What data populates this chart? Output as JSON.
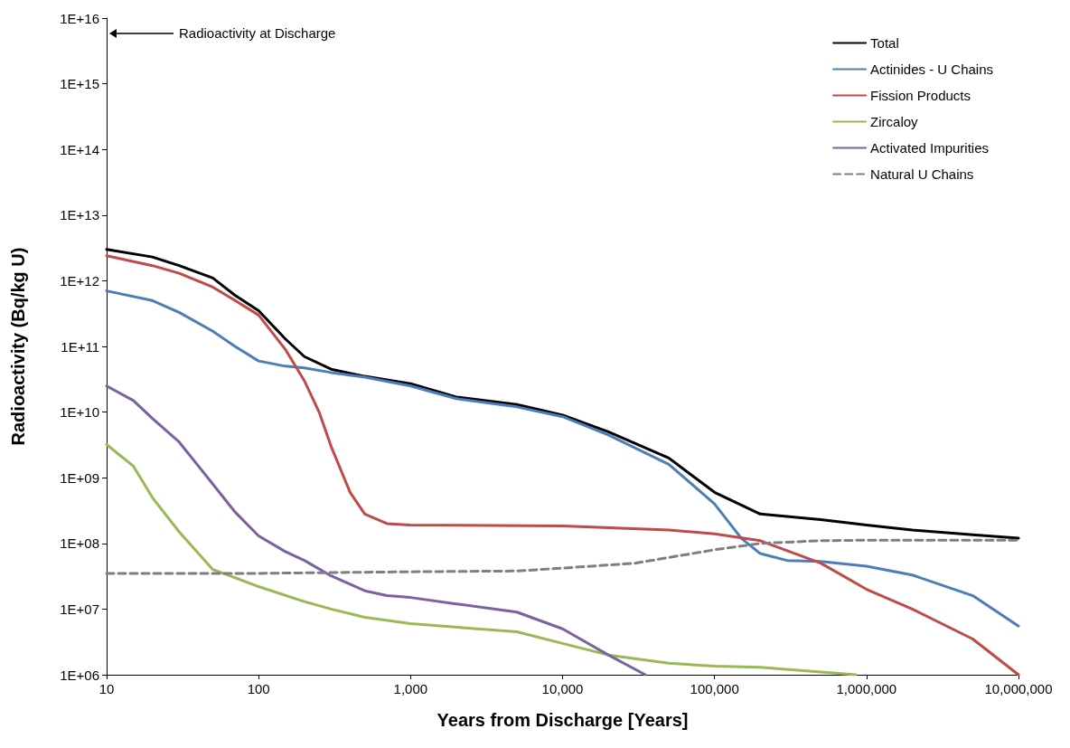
{
  "chart_data": {
    "type": "line",
    "xlabel": "Years from Discharge [Years]",
    "ylabel": "Radioactivity (Bq/kg U)",
    "log": "xy",
    "grid": false,
    "legend": "top right",
    "marker": "none",
    "xlim": [
      10,
      10000000
    ],
    "xticks": [
      10,
      100,
      {
        "value": 1000,
        "label": "1,000"
      },
      {
        "value": 10000,
        "label": "10,000"
      },
      {
        "value": 100000,
        "label": "100,000"
      },
      {
        "value": 1000000,
        "label": "1,000,000"
      },
      {
        "value": 10000000,
        "label": "10,000,000"
      }
    ],
    "ylim": [
      1000000,
      10000000000000000
    ],
    "yticks": [
      {
        "value": 1000000,
        "label": "1E+06"
      },
      {
        "value": 10000000,
        "label": "1E+07"
      },
      {
        "value": 100000000,
        "label": "1E+08"
      },
      {
        "value": 1000000000,
        "label": "1E+09"
      },
      {
        "value": 10000000000,
        "label": "1E+10"
      },
      {
        "value": 100000000000,
        "label": "1E+11"
      },
      {
        "value": 1000000000000,
        "label": "1E+12"
      },
      {
        "value": 10000000000000,
        "label": "1E+13"
      },
      {
        "value": 100000000000000,
        "label": "1E+14"
      },
      {
        "value": 1000000000000000,
        "label": "1E+15"
      },
      {
        "value": 10000000000000000,
        "label": "1E+16"
      }
    ],
    "annotations": [
      "Radioactivity at Discharge"
    ],
    "series": [
      {
        "name": "Total",
        "color": "#000000",
        "line_style": "solid",
        "x": [
          10,
          20,
          30,
          50,
          70,
          100,
          150,
          200,
          300,
          500,
          1000,
          2000,
          5000,
          10000,
          20000,
          50000,
          100000,
          200000,
          500000,
          1000000,
          2000000,
          5000000,
          10000000
        ],
        "values": [
          3000000000000.0,
          2300000000000.0,
          1700000000000.0,
          1100000000000.0,
          600000000000.0,
          350000000000.0,
          130000000000.0,
          70000000000.0,
          45000000000.0,
          35000000000.0,
          27000000000.0,
          17000000000.0,
          13000000000.0,
          9000000000.0,
          5000000000.0,
          2000000000.0,
          600000000.0,
          280000000.0,
          230000000.0,
          190000000.0,
          160000000.0,
          135000000.0,
          120000000.0
        ]
      },
      {
        "name": "Actinides - U Chains",
        "color": "#4a7ebb",
        "line_style": "solid",
        "x": [
          10,
          20,
          30,
          50,
          70,
          100,
          150,
          200,
          300,
          500,
          1000,
          2000,
          5000,
          10000,
          20000,
          50000,
          100000,
          150000,
          200000,
          300000,
          500000,
          1000000,
          2000000,
          5000000,
          10000000
        ],
        "values": [
          700000000000.0,
          500000000000.0,
          330000000000.0,
          170000000000.0,
          100000000000.0,
          60000000000.0,
          50000000000.0,
          47000000000.0,
          40000000000.0,
          34000000000.0,
          25000000000.0,
          16000000000.0,
          12000000000.0,
          8500000000.0,
          4500000000.0,
          1600000000.0,
          400000000.0,
          120000000.0,
          70000000.0,
          55000000.0,
          53000000.0,
          45000000.0,
          33000000.0,
          16000000.0,
          5500000.0
        ]
      },
      {
        "name": "Fission Products",
        "color": "#be4b48",
        "line_style": "solid",
        "x": [
          10,
          20,
          30,
          50,
          70,
          100,
          150,
          200,
          250,
          300,
          400,
          500,
          700,
          1000,
          10000,
          50000,
          100000,
          200000,
          500000,
          1000000,
          2000000,
          5000000,
          10000000
        ],
        "values": [
          2400000000000.0,
          1700000000000.0,
          1300000000000.0,
          800000000000.0,
          500000000000.0,
          300000000000.0,
          90000000000.0,
          30000000000.0,
          10000000000.0,
          3000000000.0,
          600000000.0,
          280000000.0,
          200000000.0,
          190000000.0,
          185000000.0,
          160000000.0,
          140000000.0,
          110000000.0,
          50000000.0,
          20000000.0,
          10000000.0,
          3500000.0,
          1000000.0
        ]
      },
      {
        "name": "Zircaloy",
        "color": "#98b954",
        "line_style": "solid",
        "x": [
          10,
          15,
          20,
          30,
          50,
          70,
          100,
          200,
          300,
          500,
          1000,
          5000,
          10000,
          20000,
          50000,
          100000,
          200000,
          500000,
          850000
        ],
        "values": [
          3200000000.0,
          1500000000.0,
          500000000.0,
          150000000.0,
          40000000.0,
          30000000.0,
          22000000.0,
          13000000.0,
          10000000.0,
          7500000.0,
          6000000.0,
          4500000.0,
          3000000.0,
          2000000.0,
          1500000.0,
          1350000.0,
          1300000.0,
          1100000.0,
          1000000.0
        ]
      },
      {
        "name": "Activated Impurities",
        "color": "#7d60a0",
        "line_style": "solid",
        "x": [
          10,
          15,
          20,
          30,
          50,
          70,
          100,
          150,
          200,
          300,
          500,
          700,
          1000,
          2000,
          5000,
          10000,
          20000,
          35000
        ],
        "values": [
          25000000000.0,
          15000000000.0,
          8000000000.0,
          3500000000.0,
          800000000.0,
          300000000.0,
          130000000.0,
          75000000.0,
          55000000.0,
          32000000.0,
          19000000.0,
          16000000.0,
          15000000.0,
          12000000.0,
          9000000.0,
          5000000.0,
          2000000.0,
          1000000.0
        ]
      },
      {
        "name": "Natural U Chains",
        "color": "#7f7f7f",
        "line_style": "dashed",
        "x": [
          10,
          100,
          1000,
          5000,
          10000,
          30000,
          100000,
          200000,
          500000,
          1000000,
          10000000
        ],
        "values": [
          35000000.0,
          35000000.0,
          37000000.0,
          38000000.0,
          42000000.0,
          50000000.0,
          80000000.0,
          100000000.0,
          110000000.0,
          112000000.0,
          112000000.0
        ]
      }
    ]
  }
}
